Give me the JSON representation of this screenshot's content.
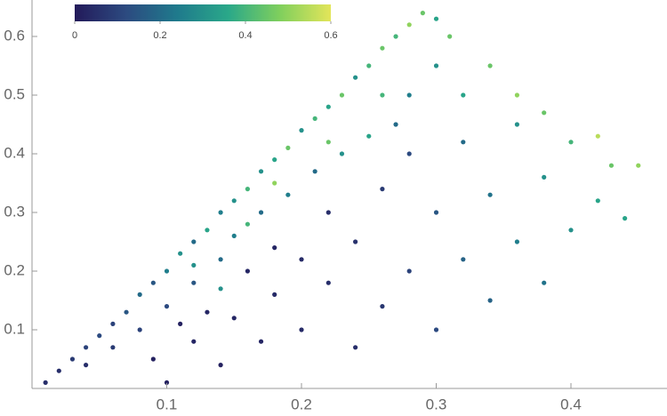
{
  "chart_data": {
    "type": "scatter",
    "xlim": [
      0,
      0.47
    ],
    "ylim": [
      0,
      0.66
    ],
    "xticks": [
      0.1,
      0.2,
      0.3,
      0.4
    ],
    "yticks": [
      0.1,
      0.2,
      0.3,
      0.4,
      0.5,
      0.6
    ],
    "colorbar": {
      "lim": [
        0,
        0.6
      ],
      "ticks": [
        0,
        0.2,
        0.4,
        0.6
      ],
      "colormap": [
        "#231a5a",
        "#2c4a80",
        "#1f7a8c",
        "#2aa889",
        "#7fcf5d",
        "#e3e55a"
      ]
    },
    "x": [
      0.01,
      0.02,
      0.03,
      0.04,
      0.05,
      0.06,
      0.07,
      0.08,
      0.09,
      0.1,
      0.11,
      0.12,
      0.13,
      0.14,
      0.15,
      0.16,
      0.17,
      0.18,
      0.19,
      0.2,
      0.21,
      0.22,
      0.23,
      0.24,
      0.25,
      0.26,
      0.27,
      0.28,
      0.29,
      0.3,
      0.04,
      0.06,
      0.08,
      0.1,
      0.12,
      0.14,
      0.14,
      0.15,
      0.17,
      0.19,
      0.21,
      0.23,
      0.25,
      0.26,
      0.22,
      0.18,
      0.16,
      0.12,
      0.09,
      0.1,
      0.12,
      0.14,
      0.15,
      0.17,
      0.18,
      0.2,
      0.2,
      0.22,
      0.22,
      0.24,
      0.24,
      0.26,
      0.26,
      0.28,
      0.28,
      0.3,
      0.3,
      0.32,
      0.32,
      0.34,
      0.34,
      0.36,
      0.36,
      0.38,
      0.38,
      0.4,
      0.4,
      0.42,
      0.43,
      0.45,
      0.44,
      0.32,
      0.34,
      0.3,
      0.28,
      0.31,
      0.36,
      0.38,
      0.42,
      0.27,
      0.18,
      0.13,
      0.16,
      0.11
    ],
    "values": [
      0.01,
      0.03,
      0.05,
      0.07,
      0.09,
      0.11,
      0.13,
      0.16,
      0.18,
      0.2,
      0.23,
      0.25,
      0.27,
      0.3,
      0.32,
      0.34,
      0.37,
      0.39,
      0.41,
      0.44,
      0.46,
      0.48,
      0.5,
      0.53,
      0.55,
      0.58,
      0.6,
      0.62,
      0.64,
      0.63,
      0.04,
      0.07,
      0.1,
      0.14,
      0.18,
      0.17,
      0.22,
      0.26,
      0.3,
      0.33,
      0.37,
      0.4,
      0.43,
      0.5,
      0.42,
      0.35,
      0.28,
      0.21,
      0.05,
      0.01,
      0.08,
      0.04,
      0.12,
      0.08,
      0.16,
      0.1,
      0.22,
      0.18,
      0.3,
      0.25,
      0.07,
      0.14,
      0.34,
      0.2,
      0.4,
      0.1,
      0.3,
      0.22,
      0.42,
      0.15,
      0.33,
      0.25,
      0.45,
      0.18,
      0.36,
      0.27,
      0.42,
      0.32,
      0.38,
      0.38,
      0.29,
      0.5,
      0.55,
      0.55,
      0.5,
      0.6,
      0.5,
      0.47,
      0.43,
      0.45,
      0.24,
      0.13,
      0.2,
      0.11
    ],
    "color_values": [
      0.05,
      0.05,
      0.08,
      0.1,
      0.12,
      0.1,
      0.15,
      0.2,
      0.15,
      0.25,
      0.3,
      0.2,
      0.35,
      0.25,
      0.3,
      0.4,
      0.3,
      0.35,
      0.45,
      0.3,
      0.4,
      0.35,
      0.45,
      0.3,
      0.4,
      0.45,
      0.4,
      0.5,
      0.45,
      0.35,
      0.05,
      0.08,
      0.1,
      0.12,
      0.15,
      0.3,
      0.2,
      0.25,
      0.2,
      0.25,
      0.2,
      0.3,
      0.35,
      0.4,
      0.45,
      0.5,
      0.4,
      0.3,
      0.02,
      0.02,
      0.03,
      0.02,
      0.03,
      0.03,
      0.04,
      0.04,
      0.04,
      0.05,
      0.05,
      0.06,
      0.05,
      0.07,
      0.08,
      0.1,
      0.12,
      0.12,
      0.15,
      0.18,
      0.2,
      0.18,
      0.22,
      0.25,
      0.3,
      0.22,
      0.3,
      0.3,
      0.4,
      0.35,
      0.45,
      0.5,
      0.35,
      0.35,
      0.45,
      0.3,
      0.25,
      0.45,
      0.5,
      0.45,
      0.55,
      0.2,
      0.03,
      0.03,
      0.03,
      0.02
    ]
  }
}
